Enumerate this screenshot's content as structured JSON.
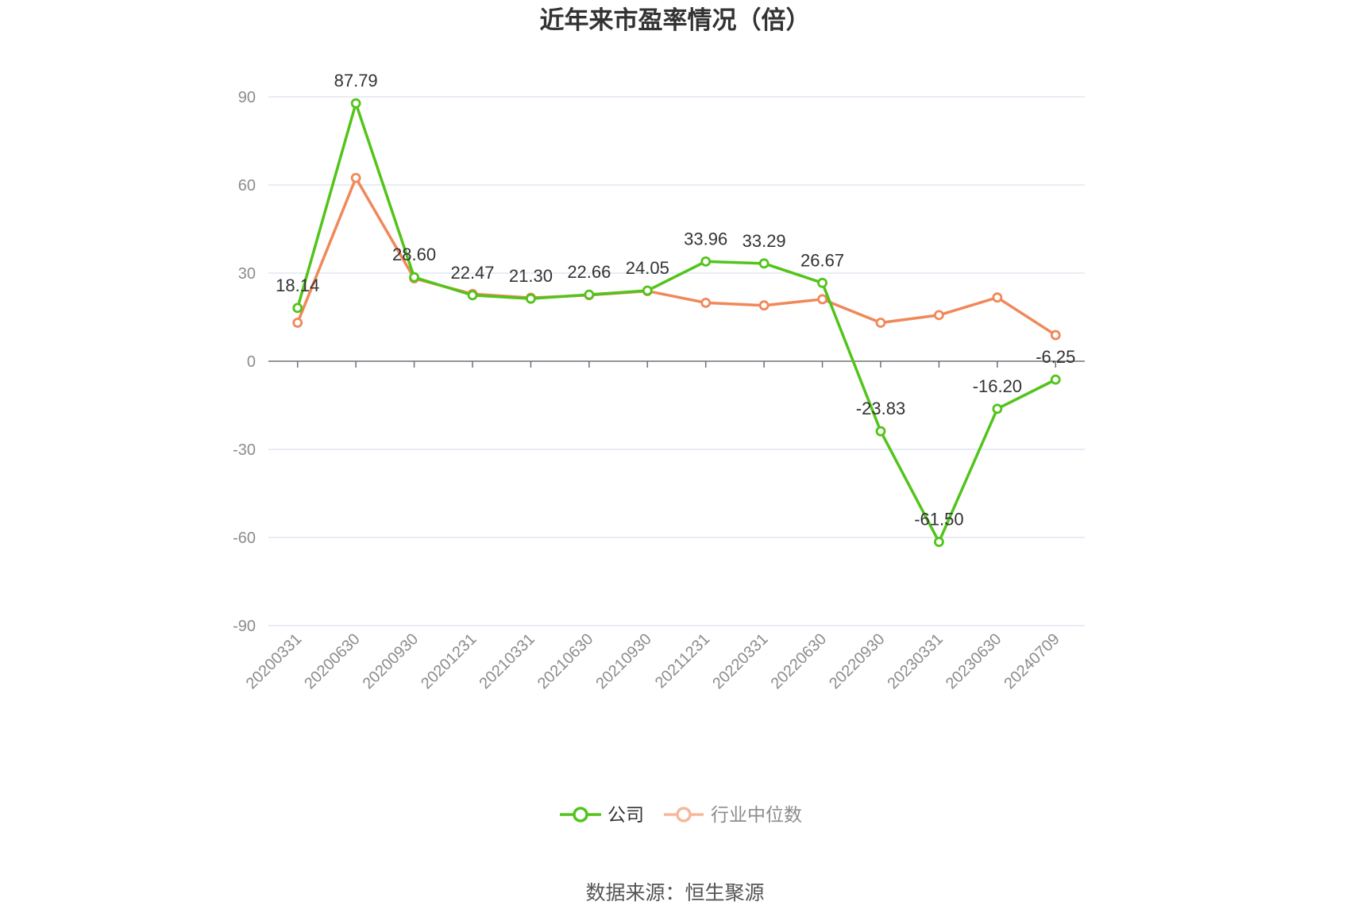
{
  "chart_data": {
    "type": "line",
    "title": "近年来市盈率情况（倍）",
    "categories": [
      "20200331",
      "20200630",
      "20200930",
      "20201231",
      "20210331",
      "20210630",
      "20210930",
      "20211231",
      "20220331",
      "20220630",
      "20220930",
      "20230331",
      "20230630",
      "20240709"
    ],
    "series": [
      {
        "name": "公司",
        "color": "#52c41a",
        "values": [
          18.14,
          87.79,
          28.6,
          22.47,
          21.3,
          22.66,
          24.05,
          33.96,
          33.29,
          26.67,
          -23.83,
          -61.5,
          -16.2,
          -6.25
        ],
        "labels": [
          "18.14",
          "87.79",
          "28.60",
          "22.47",
          "21.30",
          "22.66",
          "24.05",
          "33.96",
          "33.29",
          "26.67",
          "-23.83",
          "-61.50",
          "-16.20",
          "-6.25"
        ]
      },
      {
        "name": "行业中位数",
        "color": "#f0885a",
        "values": [
          13.1,
          62.4,
          28.2,
          22.9,
          21.6,
          22.5,
          23.9,
          19.9,
          19.0,
          21.1,
          13.1,
          15.7,
          21.7,
          8.9
        ]
      }
    ],
    "ylim": [
      -90,
      90
    ],
    "yticks": [
      -90,
      -60,
      -30,
      0,
      30,
      60,
      90
    ],
    "grid": true,
    "legend": "bottom"
  },
  "source": "数据来源：恒生聚源"
}
